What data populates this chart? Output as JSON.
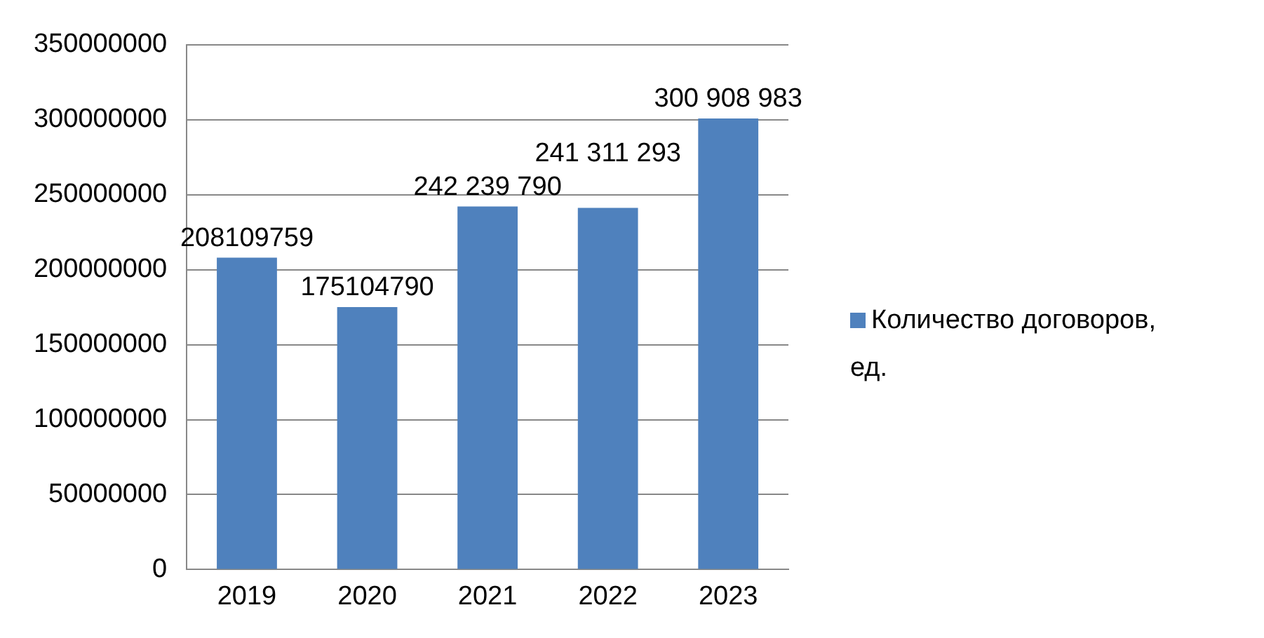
{
  "chart_data": {
    "type": "bar",
    "categories": [
      "2019",
      "2020",
      "2021",
      "2022",
      "2023"
    ],
    "series": [
      {
        "name": "Количество договоров, ед.",
        "color": "#4f81bd",
        "values": [
          208109759,
          175104790,
          242239790,
          241311293,
          300908983
        ],
        "value_labels": [
          "208109759",
          "175104790",
          "242 239 790",
          "241 311 293",
          "300 908 983"
        ]
      }
    ],
    "ylim": [
      0,
      350000000
    ],
    "yticks": [
      0,
      50000000,
      100000000,
      150000000,
      200000000,
      250000000,
      300000000,
      350000000
    ],
    "grid": "y",
    "legend": "right"
  }
}
